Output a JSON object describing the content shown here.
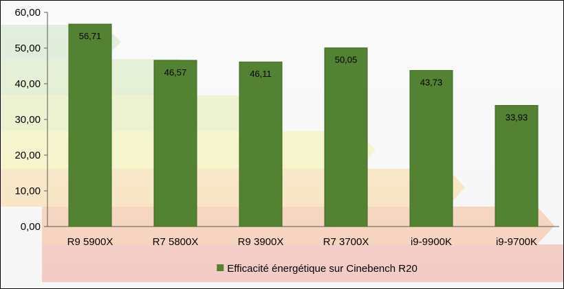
{
  "chart_data": {
    "type": "bar",
    "categories": [
      "R9 5900X",
      "R7 5800X",
      "R9 3900X",
      "R7 3700X",
      "i9-9900K",
      "i9-9700K"
    ],
    "series": [
      {
        "name": "Efficacité énergétique sur Cinebench R20",
        "values": [
          56.71,
          46.57,
          46.11,
          50.05,
          43.73,
          33.93
        ],
        "value_labels": [
          "56,71",
          "46,57",
          "46,11",
          "50,05",
          "43,73",
          "33,93"
        ]
      }
    ],
    "ylim": [
      0,
      60
    ],
    "yticks": [
      "0,00",
      "10,00",
      "20,00",
      "30,00",
      "40,00",
      "50,00",
      "60,00"
    ],
    "grid": false,
    "legend_position": "bottom",
    "colors": {
      "bar": "#538233",
      "bar_edge": "#3e6a24"
    },
    "background": "energy-label-photo"
  }
}
